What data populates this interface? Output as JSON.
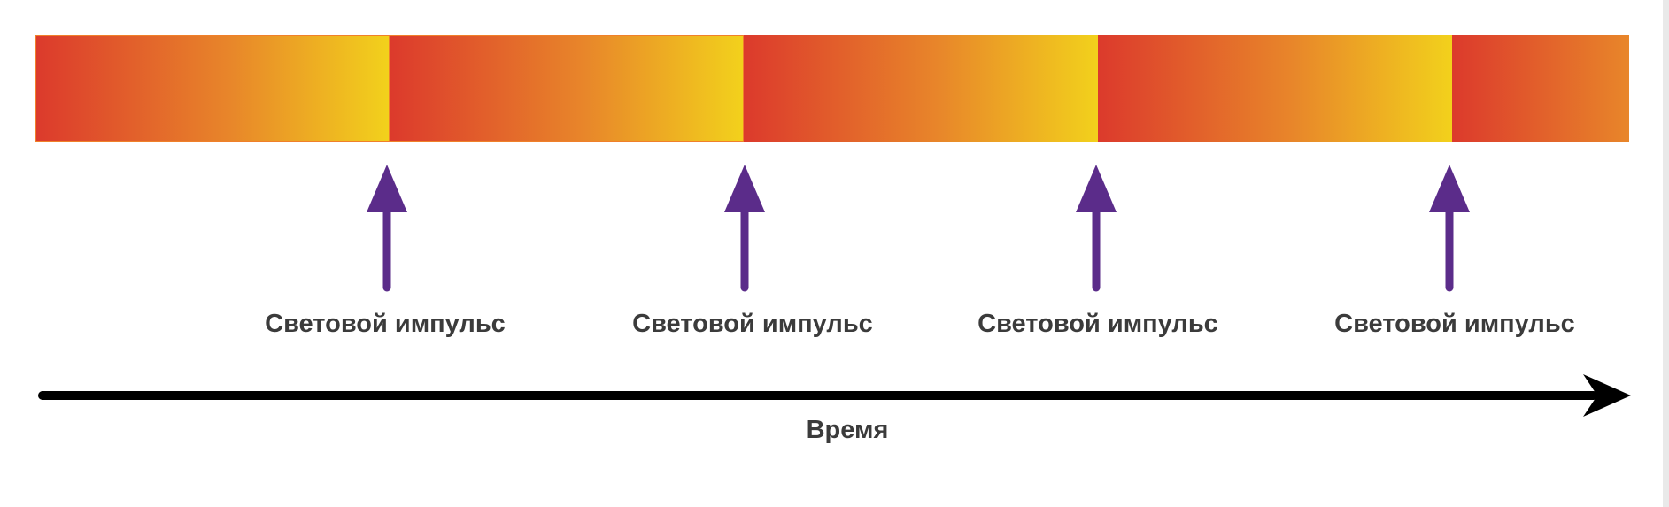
{
  "colors": {
    "gradient_start": "#dc3a2c",
    "gradient_mid": "#e8862a",
    "gradient_end": "#f2d11c",
    "pulse_arrow": "#5b2c8a",
    "time_arrow": "#000000",
    "label_text": "#3b3b3b"
  },
  "diagram": {
    "pulses": [
      {
        "label": "Световой импульс"
      },
      {
        "label": "Световой импульс"
      },
      {
        "label": "Световой импульс"
      },
      {
        "label": "Световой импульс"
      }
    ],
    "time_axis": {
      "label": "Время"
    }
  }
}
